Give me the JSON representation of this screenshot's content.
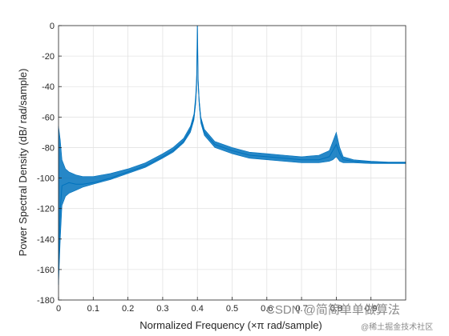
{
  "chart_data": {
    "type": "line",
    "title": "",
    "xlabel": "Normalized Frequency  (×π rad/sample)",
    "ylabel": "Power Spectral Density (dB/ rad/sample)",
    "xlim": [
      0,
      1
    ],
    "ylim": [
      -180,
      0
    ],
    "xticks": [
      0,
      0.1,
      0.2,
      0.3,
      0.4,
      0.5,
      0.6,
      0.7,
      0.8,
      0.9
    ],
    "xtick_labels": [
      "0",
      "0.1",
      "0.2",
      "0.3",
      "0.4",
      "0.5",
      "0.6",
      "0.7",
      "0.8",
      "0.9"
    ],
    "yticks": [
      0,
      -20,
      -40,
      -60,
      -80,
      -100,
      -120,
      -140,
      -160,
      -180
    ],
    "ytick_labels": [
      "0",
      "-20",
      "-40",
      "-60",
      "-80",
      "-100",
      "-120",
      "-140",
      "-160",
      "-180"
    ],
    "grid": true,
    "line_color": "#0072BD",
    "series": [
      {
        "name": "",
        "x": [
          0.0,
          0.005,
          0.01,
          0.02,
          0.03,
          0.05,
          0.07,
          0.1,
          0.15,
          0.2,
          0.25,
          0.3,
          0.33,
          0.36,
          0.38,
          0.39,
          0.395,
          0.398,
          0.4,
          0.402,
          0.405,
          0.41,
          0.42,
          0.45,
          0.5,
          0.55,
          0.6,
          0.65,
          0.7,
          0.75,
          0.78,
          0.79,
          0.8,
          0.81,
          0.82,
          0.85,
          0.9,
          0.95,
          1.0
        ],
        "y": [
          -160,
          -120,
          -105,
          -104,
          -103,
          -104,
          -104,
          -103,
          -100,
          -96,
          -92,
          -86,
          -82,
          -76,
          -68,
          -60,
          -50,
          -36,
          0,
          -36,
          -50,
          -62,
          -70,
          -78,
          -82,
          -85,
          -86,
          -87,
          -88,
          -88,
          -86,
          -82,
          -78,
          -84,
          -88,
          -89,
          -89.5,
          -90,
          -90
        ],
        "y_min": [
          -170,
          -140,
          -118,
          -112,
          -110,
          -108,
          -106,
          -104,
          -101,
          -97,
          -93,
          -87,
          -83,
          -77,
          -70,
          -62,
          -52,
          -40,
          -2,
          -38,
          -52,
          -64,
          -72,
          -80,
          -84,
          -87,
          -88,
          -89,
          -90,
          -90,
          -89,
          -88,
          -86,
          -89,
          -90,
          -90,
          -90.5,
          -90.5,
          -90.5
        ],
        "y_max": [
          -66,
          -75,
          -88,
          -94,
          -96,
          -98,
          -99,
          -99,
          -97,
          -94,
          -90,
          -84,
          -80,
          -74,
          -66,
          -58,
          -46,
          -32,
          0,
          -34,
          -48,
          -60,
          -68,
          -76,
          -80,
          -83,
          -84,
          -85,
          -86,
          -85,
          -82,
          -76,
          -70,
          -80,
          -86,
          -88,
          -89,
          -89.5,
          -89.5
        ]
      }
    ]
  },
  "watermark": {
    "text": "CSDN @简简单单做算法",
    "subtext": "@稀土掘金技术社区"
  }
}
